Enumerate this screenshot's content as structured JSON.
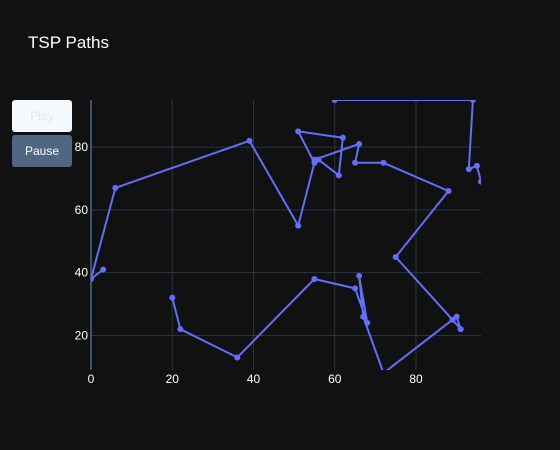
{
  "chart_data": {
    "type": "line",
    "title": "TSP Paths",
    "xlabel": "",
    "ylabel": "",
    "xlim": [
      0,
      96
    ],
    "ylim": [
      9,
      95
    ],
    "x_ticks": [
      0,
      20,
      40,
      60,
      80
    ],
    "y_ticks": [
      20,
      40,
      60,
      80
    ],
    "grid": true,
    "line_color": "#636efa",
    "series": [
      {
        "x": [
          20,
          22,
          36,
          55,
          65,
          68,
          66,
          67,
          72,
          90,
          91,
          89,
          75,
          88,
          72,
          65,
          66,
          55,
          56,
          61,
          62,
          51,
          55,
          51,
          39,
          6,
          0,
          3
        ],
        "y": [
          32,
          22,
          13,
          38,
          35,
          24,
          39,
          26,
          8,
          26,
          22,
          25,
          45,
          66,
          75,
          75,
          81,
          76,
          76,
          71,
          83,
          85,
          75,
          55,
          82,
          67,
          38,
          41
        ]
      },
      {
        "x": [
          60,
          94,
          93,
          95,
          96
        ],
        "y": [
          95,
          95,
          73,
          74,
          69
        ]
      }
    ]
  },
  "controls": {
    "play_label": "Play",
    "pause_label": "Pause"
  },
  "colors": {
    "background": "#111111",
    "grid": "#283442",
    "line": "#636efa",
    "pause_button": "#506784",
    "play_button": "#f5faff"
  }
}
